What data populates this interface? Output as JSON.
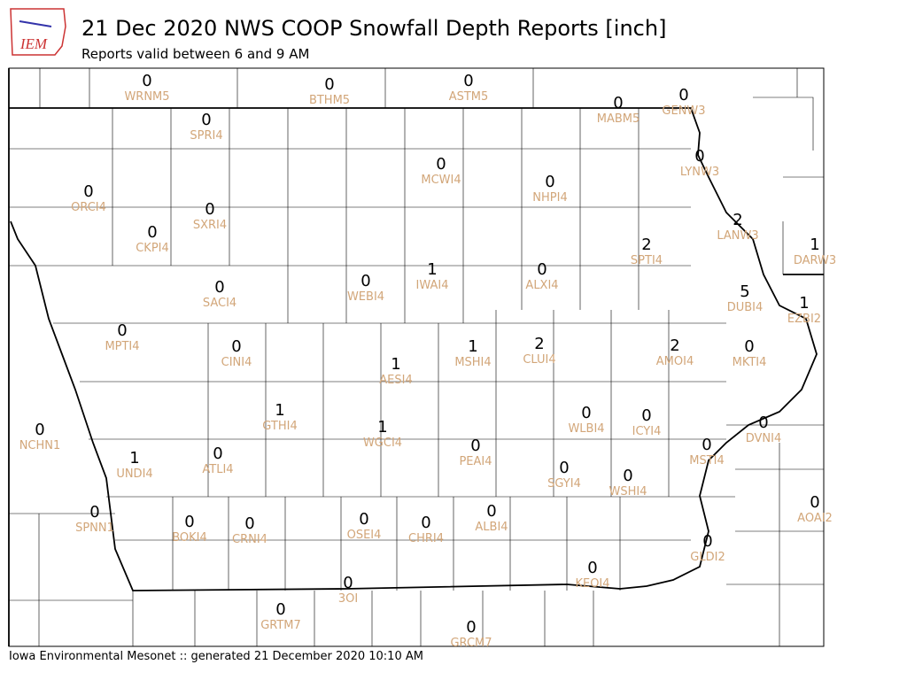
{
  "header": {
    "logo": "IEM",
    "title": "21 Dec 2020 NWS COOP Snowfall Depth Reports [inch]",
    "subtitle": "Reports valid between 6 and 9 AM"
  },
  "stations": [
    {
      "id": "WRNM5",
      "value": 0
    },
    {
      "id": "BTHM5",
      "value": 0
    },
    {
      "id": "ASTM5",
      "value": 0
    },
    {
      "id": "MABM5",
      "value": 0
    },
    {
      "id": "GENW3",
      "value": 0
    },
    {
      "id": "SPRI4",
      "value": 0
    },
    {
      "id": "MCWI4",
      "value": 0
    },
    {
      "id": "NHPI4",
      "value": 0
    },
    {
      "id": "LYNW3",
      "value": 0
    },
    {
      "id": "ORCI4",
      "value": 0
    },
    {
      "id": "SXRI4",
      "value": 0
    },
    {
      "id": "CKPI4",
      "value": 0
    },
    {
      "id": "LANW3",
      "value": 2
    },
    {
      "id": "SPTI4",
      "value": 2
    },
    {
      "id": "DARW3",
      "value": 1
    },
    {
      "id": "IWAI4",
      "value": 1
    },
    {
      "id": "ALXI4",
      "value": 0
    },
    {
      "id": "WEBI4",
      "value": 0
    },
    {
      "id": "SACI4",
      "value": 0
    },
    {
      "id": "DUBI4",
      "value": 5
    },
    {
      "id": "EZBI2",
      "value": 1
    },
    {
      "id": "MPTI4",
      "value": 0
    },
    {
      "id": "CINI4",
      "value": 0
    },
    {
      "id": "MSHI4",
      "value": 1
    },
    {
      "id": "CLUI4",
      "value": 2
    },
    {
      "id": "AMOI4",
      "value": 2
    },
    {
      "id": "MKTI4",
      "value": 0
    },
    {
      "id": "AESI4",
      "value": 1
    },
    {
      "id": "GTHI4",
      "value": 1
    },
    {
      "id": "WLBI4",
      "value": 0
    },
    {
      "id": "ICYI4",
      "value": 0
    },
    {
      "id": "DVNI4",
      "value": 0
    },
    {
      "id": "NCHN1",
      "value": 0
    },
    {
      "id": "WGCI4",
      "value": 1
    },
    {
      "id": "MSTI4",
      "value": 0
    },
    {
      "id": "PEAI4",
      "value": 0
    },
    {
      "id": "UNDI4",
      "value": 1
    },
    {
      "id": "ATLI4",
      "value": 0
    },
    {
      "id": "SGYI4",
      "value": 0
    },
    {
      "id": "WSHI4",
      "value": 0
    },
    {
      "id": "AOAI2",
      "value": 0
    },
    {
      "id": "SPNN1",
      "value": 0
    },
    {
      "id": "BOKI4",
      "value": 0
    },
    {
      "id": "CRNI4",
      "value": 0
    },
    {
      "id": "OSEI4",
      "value": 0
    },
    {
      "id": "CHRI4",
      "value": 0
    },
    {
      "id": "ALBI4",
      "value": 0
    },
    {
      "id": "GLDI2",
      "value": 0
    },
    {
      "id": "KEOI4",
      "value": 0
    },
    {
      "id": "3OI",
      "value": 0
    },
    {
      "id": "GRTM7",
      "value": 0
    },
    {
      "id": "GRCM7",
      "value": 0
    }
  ],
  "footer": "Iowa Environmental Mesonet :: generated 21 December 2020 10:10 AM"
}
